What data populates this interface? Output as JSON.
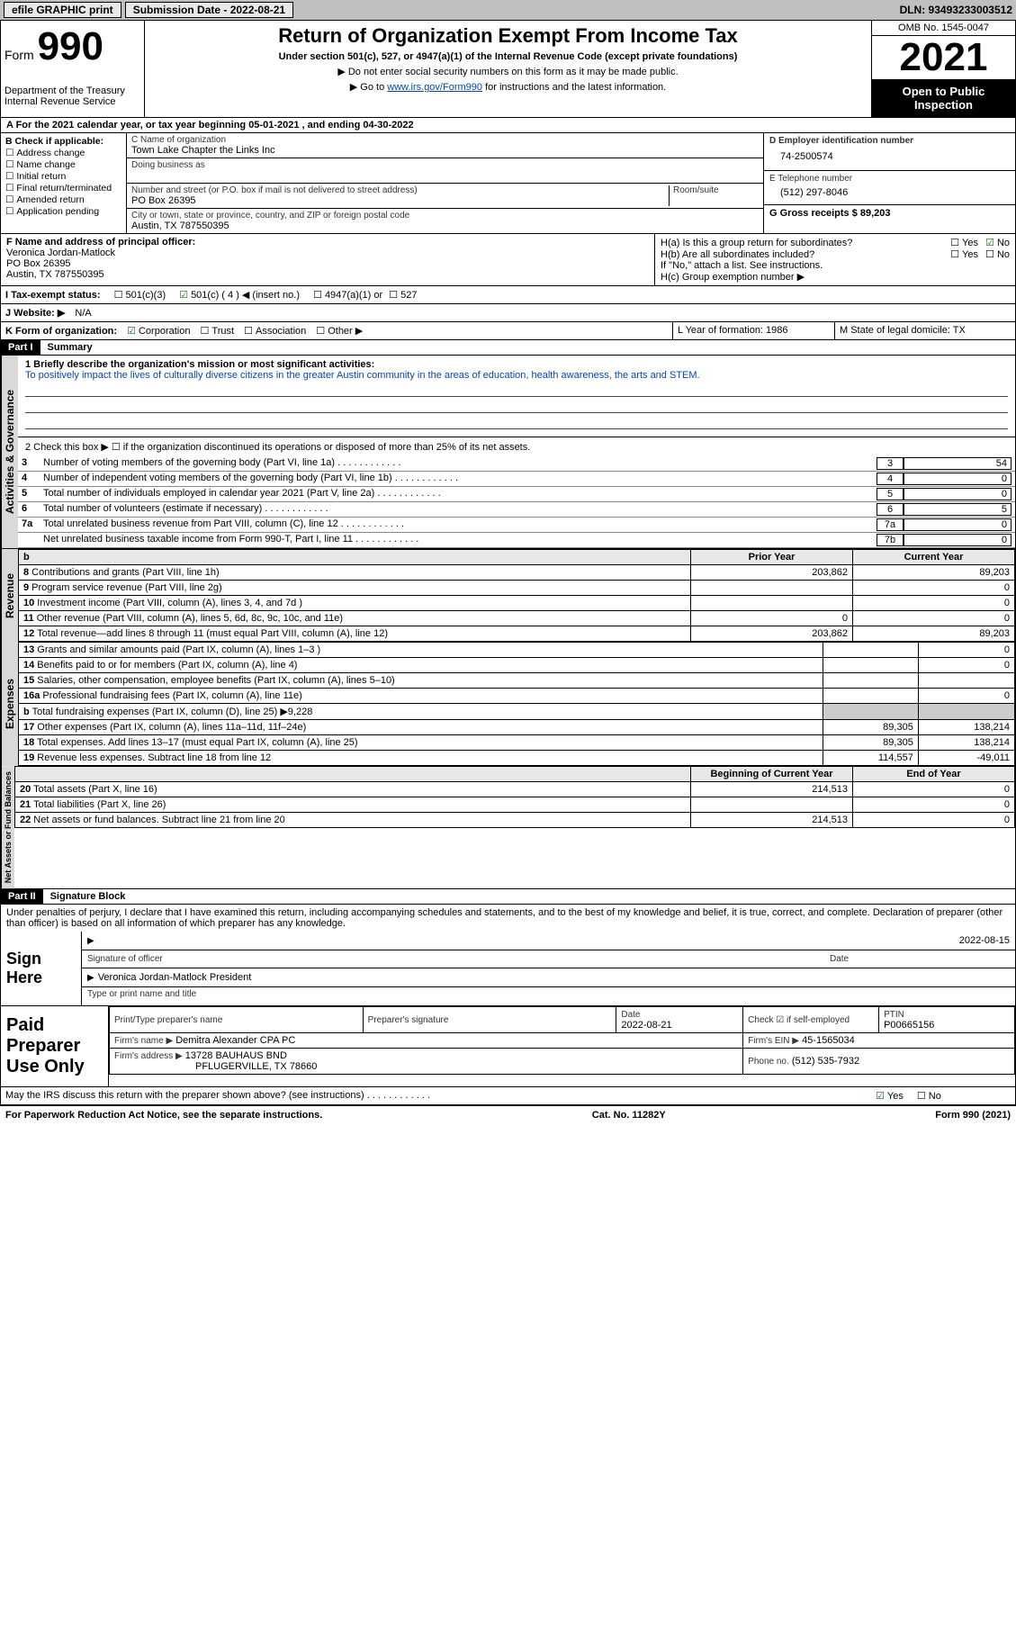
{
  "topbar": {
    "efile": "efile GRAPHIC print",
    "submission_label": "Submission Date - 2022-08-21",
    "dln_label": "DLN: 93493233003512"
  },
  "header": {
    "form_prefix": "Form",
    "form_number": "990",
    "dept": "Department of the Treasury",
    "irs": "Internal Revenue Service",
    "title": "Return of Organization Exempt From Income Tax",
    "subtitle": "Under section 501(c), 527, or 4947(a)(1) of the Internal Revenue Code (except private foundations)",
    "note1": "▶ Do not enter social security numbers on this form as it may be made public.",
    "note2_pre": "▶ Go to ",
    "note2_link": "www.irs.gov/Form990",
    "note2_post": " for instructions and the latest information.",
    "omb": "OMB No. 1545-0047",
    "year": "2021",
    "inspect": "Open to Public Inspection"
  },
  "sectionA": "A For the 2021 calendar year, or tax year beginning 05-01-2021   , and ending 04-30-2022",
  "sectionB": {
    "label": "B Check if applicable:",
    "opts": [
      "Address change",
      "Name change",
      "Initial return",
      "Final return/terminated",
      "Amended return",
      "Application pending"
    ]
  },
  "sectionC": {
    "name_label": "C Name of organization",
    "name": "Town Lake Chapter the Links Inc",
    "dba_label": "Doing business as",
    "addr_label": "Number and street (or P.O. box if mail is not delivered to street address)",
    "room_label": "Room/suite",
    "addr": "PO Box 26395",
    "city_label": "City or town, state or province, country, and ZIP or foreign postal code",
    "city": "Austin, TX  787550395"
  },
  "sectionD": {
    "ein_label": "D Employer identification number",
    "ein": "74-2500574",
    "phone_label": "E Telephone number",
    "phone": "(512) 297-8046",
    "gross_label": "G Gross receipts $ 89,203"
  },
  "sectionF": {
    "label": "F  Name and address of principal officer:",
    "name": "Veronica Jordan-Matlock",
    "addr1": "PO Box 26395",
    "addr2": "Austin, TX  787550395"
  },
  "sectionH": {
    "a": "H(a)  Is this a group return for subordinates?",
    "a_yes": "Yes",
    "a_no": "No",
    "b": "H(b)  Are all subordinates included?",
    "b_note": "If \"No,\" attach a list. See instructions.",
    "c": "H(c)  Group exemption number ▶"
  },
  "sectionI": {
    "label": "I  Tax-exempt status:",
    "o1": "501(c)(3)",
    "o2": "501(c) ( 4 ) ◀ (insert no.)",
    "o3": "4947(a)(1) or",
    "o4": "527"
  },
  "sectionJ": {
    "label": "J  Website: ▶",
    "val": "N/A"
  },
  "sectionK": {
    "label": "K Form of organization:",
    "o1": "Corporation",
    "o2": "Trust",
    "o3": "Association",
    "o4": "Other ▶"
  },
  "sectionL": {
    "label": "L Year of formation: 1986"
  },
  "sectionM": {
    "label": "M State of legal domicile: TX"
  },
  "part1": {
    "hdr": "Part I",
    "title": "Summary",
    "l1_label": "1  Briefly describe the organization's mission or most significant activities:",
    "l1_text": "To positively impact the lives of culturally diverse citizens in the greater Austin community in the areas of education, health awareness, the arts and STEM.",
    "l2": "2   Check this box ▶ ☐  if the organization discontinued its operations or disposed of more than 25% of its net assets.",
    "lines_top": [
      {
        "n": "3",
        "t": "Number of voting members of the governing body (Part VI, line 1a)",
        "box": "3",
        "v": "54"
      },
      {
        "n": "4",
        "t": "Number of independent voting members of the governing body (Part VI, line 1b)",
        "box": "4",
        "v": "0"
      },
      {
        "n": "5",
        "t": "Total number of individuals employed in calendar year 2021 (Part V, line 2a)",
        "box": "5",
        "v": "0"
      },
      {
        "n": "6",
        "t": "Total number of volunteers (estimate if necessary)",
        "box": "6",
        "v": "5"
      },
      {
        "n": "7a",
        "t": "Total unrelated business revenue from Part VIII, column (C), line 12",
        "box": "7a",
        "v": "0"
      },
      {
        "n": "",
        "t": "Net unrelated business taxable income from Form 990-T, Part I, line 11",
        "box": "7b",
        "v": "0"
      }
    ],
    "col_prior": "Prior Year",
    "col_current": "Current Year",
    "revenue": [
      {
        "n": "8",
        "t": "Contributions and grants (Part VIII, line 1h)",
        "p": "203,862",
        "c": "89,203"
      },
      {
        "n": "9",
        "t": "Program service revenue (Part VIII, line 2g)",
        "p": "",
        "c": "0"
      },
      {
        "n": "10",
        "t": "Investment income (Part VIII, column (A), lines 3, 4, and 7d )",
        "p": "",
        "c": "0"
      },
      {
        "n": "11",
        "t": "Other revenue (Part VIII, column (A), lines 5, 6d, 8c, 9c, 10c, and 11e)",
        "p": "0",
        "c": "0"
      },
      {
        "n": "12",
        "t": "Total revenue—add lines 8 through 11 (must equal Part VIII, column (A), line 12)",
        "p": "203,862",
        "c": "89,203"
      }
    ],
    "expenses": [
      {
        "n": "13",
        "t": "Grants and similar amounts paid (Part IX, column (A), lines 1–3 )",
        "p": "",
        "c": "0"
      },
      {
        "n": "14",
        "t": "Benefits paid to or for members (Part IX, column (A), line 4)",
        "p": "",
        "c": "0"
      },
      {
        "n": "15",
        "t": "Salaries, other compensation, employee benefits (Part IX, column (A), lines 5–10)",
        "p": "",
        "c": ""
      },
      {
        "n": "16a",
        "t": "Professional fundraising fees (Part IX, column (A), line 11e)",
        "p": "",
        "c": "0"
      },
      {
        "n": "b",
        "t": "Total fundraising expenses (Part IX, column (D), line 25) ▶9,228",
        "p": "—grey—",
        "c": "—grey—"
      },
      {
        "n": "17",
        "t": "Other expenses (Part IX, column (A), lines 11a–11d, 11f–24e)",
        "p": "89,305",
        "c": "138,214"
      },
      {
        "n": "18",
        "t": "Total expenses. Add lines 13–17 (must equal Part IX, column (A), line 25)",
        "p": "89,305",
        "c": "138,214"
      },
      {
        "n": "19",
        "t": "Revenue less expenses. Subtract line 18 from line 12",
        "p": "114,557",
        "c": "-49,011"
      }
    ],
    "col_begin": "Beginning of Current Year",
    "col_end": "End of Year",
    "net": [
      {
        "n": "20",
        "t": "Total assets (Part X, line 16)",
        "p": "214,513",
        "c": "0"
      },
      {
        "n": "21",
        "t": "Total liabilities (Part X, line 26)",
        "p": "",
        "c": "0"
      },
      {
        "n": "22",
        "t": "Net assets or fund balances. Subtract line 21 from line 20",
        "p": "214,513",
        "c": "0"
      }
    ]
  },
  "part2": {
    "hdr": "Part II",
    "title": "Signature Block",
    "decl": "Under penalties of perjury, I declare that I have examined this return, including accompanying schedules and statements, and to the best of my knowledge and belief, it is true, correct, and complete. Declaration of preparer (other than officer) is based on all information of which preparer has any knowledge.",
    "sign_here": "Sign Here",
    "sig_officer": "Signature of officer",
    "sig_date": "2022-08-15",
    "date_label": "Date",
    "officer_name": "Veronica Jordan-Matlock  President",
    "officer_type": "Type or print name and title",
    "paid": "Paid Preparer Use Only",
    "prep_name_label": "Print/Type preparer's name",
    "prep_sig_label": "Preparer's signature",
    "prep_date_label": "Date",
    "prep_date": "2022-08-21",
    "self_emp": "Check ☑ if self-employed",
    "ptin_label": "PTIN",
    "ptin": "P00665156",
    "firm_name_label": "Firm's name   ▶",
    "firm_name": "Demitra Alexander CPA PC",
    "firm_ein_label": "Firm's EIN ▶",
    "firm_ein": "45-1565034",
    "firm_addr_label": "Firm's address ▶",
    "firm_addr": "13728 BAUHAUS BND",
    "firm_city": "PFLUGERVILLE, TX  78660",
    "firm_phone_label": "Phone no.",
    "firm_phone": "(512) 535-7932",
    "discuss": "May the IRS discuss this return with the preparer shown above? (see instructions)",
    "discuss_yes": "Yes",
    "discuss_no": "No"
  },
  "footer": {
    "left": "For Paperwork Reduction Act Notice, see the separate instructions.",
    "mid": "Cat. No. 11282Y",
    "right": "Form 990 (2021)"
  },
  "vert_labels": {
    "ag": "Activities & Governance",
    "rev": "Revenue",
    "exp": "Expenses",
    "net": "Net Assets or Fund Balances"
  },
  "colors": {
    "link": "#0645ad",
    "check_green": "#1a6b1a",
    "grey_bg": "#cccccc"
  }
}
